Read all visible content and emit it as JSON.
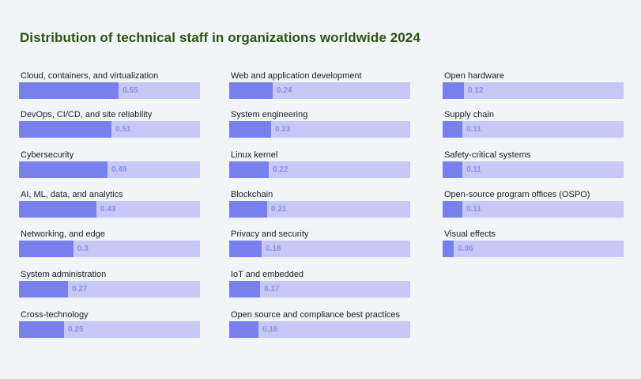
{
  "chart_data": {
    "type": "bar",
    "title": "Distribution of technical staff in organizations worldwide 2024",
    "categories": [
      "Cloud, containers, and virtualization",
      "DevOps, CI/CD, and site reliability",
      "Cybersecurity",
      "AI, ML, data, and analytics",
      "Networking, and edge",
      "System administration",
      "Cross-technology",
      "Web and application development",
      "System engineering",
      "Linux kernel",
      "Blockchain",
      "Privacy and security",
      "IoT and embedded",
      "Open source and compliance best practices",
      "Open hardware",
      "Supply chain",
      "Safety-critical systems",
      "Open-source program offices (OSPO)",
      "Visual effects"
    ],
    "values": [
      0.55,
      0.51,
      0.49,
      0.43,
      0.3,
      0.27,
      0.25,
      0.24,
      0.23,
      0.22,
      0.21,
      0.18,
      0.17,
      0.16,
      0.12,
      0.11,
      0.11,
      0.11,
      0.06
    ],
    "value_labels": [
      "0.55",
      "0.51",
      "0.49",
      "0.43",
      "0.3",
      "0.27",
      "0.25",
      "0.24",
      "0.23",
      "0.22",
      "0.21",
      "0.18",
      "0.17",
      "0.16",
      "0.12",
      "0.11",
      "0.11",
      "0.11",
      "0.06"
    ],
    "xlim": [
      0,
      1
    ],
    "grid": false,
    "legend": "none",
    "colors": {
      "title": "#2b5314",
      "bar_fill": "#7880ee",
      "bar_track": "#c6c8f6",
      "value_text": "#8a8ff0",
      "background": "#f2f5f6"
    }
  }
}
